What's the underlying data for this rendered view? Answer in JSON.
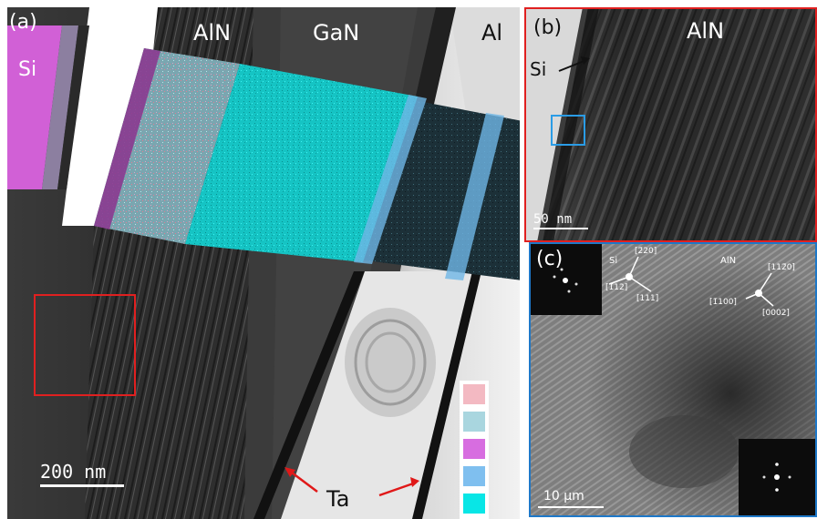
{
  "panel_a": {
    "label": "(a)",
    "layers": [
      "Si",
      "AlN",
      "GaN",
      "Al"
    ],
    "annotation": "Ta",
    "scale_bar": "200 nm",
    "legend_colors": [
      "#f3b9c2",
      "#a9d6df",
      "#d76de0",
      "#7fbfef",
      "#08e6e6"
    ],
    "eds_colors": {
      "Si": "#d160d6",
      "Al": "#f0e6f0",
      "Ga": "#19cccc",
      "N": "#e48a9a",
      "Ta": "#6fb7e6"
    }
  },
  "panel_b": {
    "label": "(b)",
    "si_label": "Si",
    "aln_label": "AlN",
    "scale_bar": "50 nm",
    "frame_color": "#e02020",
    "inset_color": "#2a9ce6"
  },
  "panel_c": {
    "label": "(c)",
    "frame_color": "#1e78c8",
    "si_label": "Si",
    "aln_label": "AlN",
    "si_dirs": [
      "[2̄20]",
      "[1̄12]",
      "[111]"
    ],
    "aln_dirs": [
      "[112̄0]",
      "[1̄100]",
      "[0002]"
    ],
    "scale_bar": "10 μm"
  }
}
